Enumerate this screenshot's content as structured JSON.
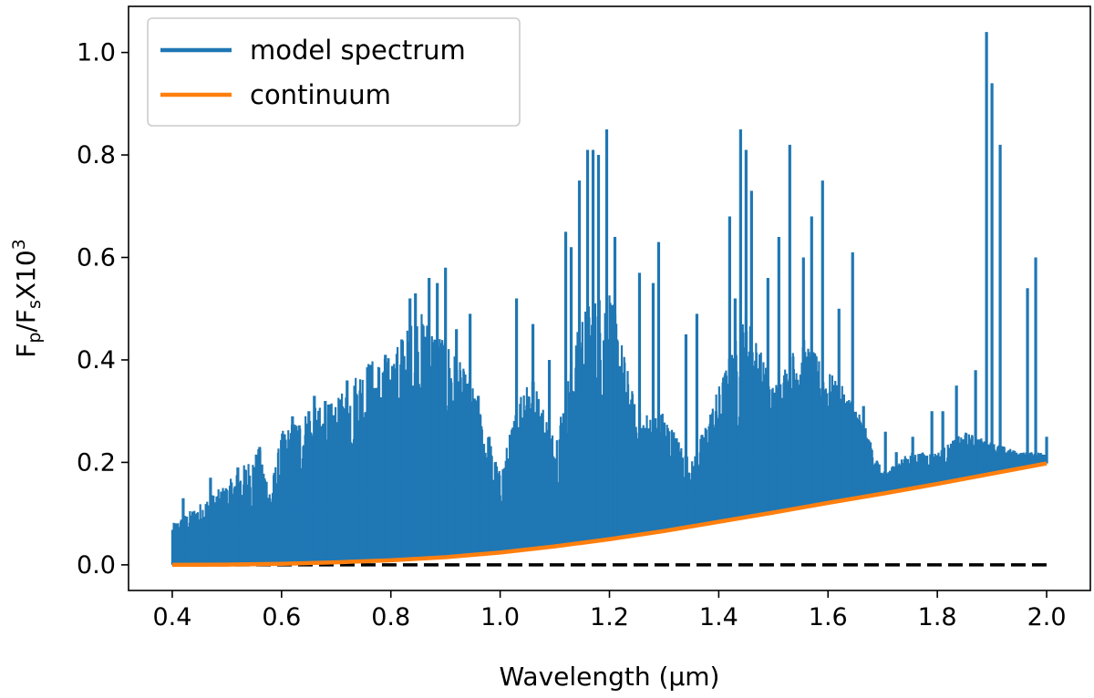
{
  "chart_data": {
    "type": "line",
    "xlabel": "Wavelength (μm)",
    "ylabel": {
      "base": "F",
      "sub1": "p",
      "mid": "/F",
      "sub2": "s",
      "post": "X10",
      "sup": "3"
    },
    "xlim": [
      0.32,
      2.08
    ],
    "ylim": [
      -0.05,
      1.09
    ],
    "xticks": [
      "0.4",
      "0.6",
      "0.8",
      "1.0",
      "1.2",
      "1.4",
      "1.6",
      "1.8",
      "2.0"
    ],
    "yticks": [
      "0.0",
      "0.2",
      "0.4",
      "0.6",
      "0.8",
      "1.0"
    ],
    "grid": false,
    "legend_position": "upper left",
    "colors": {
      "model": "#1f77b4",
      "continuum": "#ff7f0e",
      "zero": "#000000"
    },
    "series": [
      {
        "name": "model spectrum",
        "style": "dense emission-line spectrum (lines drawn from continuum up to the listed peak values)",
        "envelope": [
          [
            0.4,
            0.08
          ],
          [
            0.45,
            0.12
          ],
          [
            0.5,
            0.16
          ],
          [
            0.56,
            0.23
          ],
          [
            0.58,
            0.15
          ],
          [
            0.6,
            0.26
          ],
          [
            0.64,
            0.3
          ],
          [
            0.7,
            0.32
          ],
          [
            0.75,
            0.4
          ],
          [
            0.8,
            0.41
          ],
          [
            0.85,
            0.5
          ],
          [
            0.9,
            0.45
          ],
          [
            0.95,
            0.35
          ],
          [
            1.0,
            0.18
          ],
          [
            1.05,
            0.4
          ],
          [
            1.1,
            0.25
          ],
          [
            1.15,
            0.5
          ],
          [
            1.2,
            0.55
          ],
          [
            1.25,
            0.3
          ],
          [
            1.3,
            0.3
          ],
          [
            1.35,
            0.2
          ],
          [
            1.4,
            0.35
          ],
          [
            1.45,
            0.5
          ],
          [
            1.5,
            0.35
          ],
          [
            1.55,
            0.45
          ],
          [
            1.6,
            0.38
          ],
          [
            1.65,
            0.32
          ],
          [
            1.7,
            0.18
          ],
          [
            1.75,
            0.22
          ],
          [
            1.8,
            0.22
          ],
          [
            1.85,
            0.26
          ],
          [
            1.9,
            0.24
          ],
          [
            1.95,
            0.22
          ],
          [
            2.0,
            0.22
          ]
        ],
        "peaks": [
          [
            0.42,
            0.13
          ],
          [
            0.47,
            0.17
          ],
          [
            0.52,
            0.19
          ],
          [
            0.56,
            0.23
          ],
          [
            0.62,
            0.29
          ],
          [
            0.65,
            0.3
          ],
          [
            0.66,
            0.33
          ],
          [
            0.68,
            0.32
          ],
          [
            0.72,
            0.36
          ],
          [
            0.74,
            0.28
          ],
          [
            0.76,
            0.39
          ],
          [
            0.79,
            0.41
          ],
          [
            0.82,
            0.44
          ],
          [
            0.835,
            0.52
          ],
          [
            0.845,
            0.53
          ],
          [
            0.87,
            0.56
          ],
          [
            0.885,
            0.55
          ],
          [
            0.9,
            0.58
          ],
          [
            0.92,
            0.46
          ],
          [
            0.945,
            0.49
          ],
          [
            0.96,
            0.33
          ],
          [
            0.98,
            0.25
          ],
          [
            1.03,
            0.52
          ],
          [
            1.06,
            0.47
          ],
          [
            1.09,
            0.4
          ],
          [
            1.12,
            0.65
          ],
          [
            1.13,
            0.62
          ],
          [
            1.145,
            0.75
          ],
          [
            1.16,
            0.81
          ],
          [
            1.17,
            0.81
          ],
          [
            1.18,
            0.8
          ],
          [
            1.195,
            0.85
          ],
          [
            1.21,
            0.64
          ],
          [
            1.255,
            0.57
          ],
          [
            1.28,
            0.55
          ],
          [
            1.29,
            0.63
          ],
          [
            1.34,
            0.45
          ],
          [
            1.36,
            0.49
          ],
          [
            1.395,
            0.3
          ],
          [
            1.42,
            0.68
          ],
          [
            1.43,
            0.52
          ],
          [
            1.44,
            0.85
          ],
          [
            1.45,
            0.81
          ],
          [
            1.46,
            0.73
          ],
          [
            1.49,
            0.56
          ],
          [
            1.51,
            0.64
          ],
          [
            1.53,
            0.82
          ],
          [
            1.555,
            0.6
          ],
          [
            1.57,
            0.68
          ],
          [
            1.59,
            0.75
          ],
          [
            1.62,
            0.5
          ],
          [
            1.645,
            0.61
          ],
          [
            1.665,
            0.31
          ],
          [
            1.705,
            0.26
          ],
          [
            1.725,
            0.22
          ],
          [
            1.755,
            0.25
          ],
          [
            1.79,
            0.3
          ],
          [
            1.81,
            0.3
          ],
          [
            1.835,
            0.35
          ],
          [
            1.87,
            0.38
          ],
          [
            1.89,
            1.04
          ],
          [
            1.9,
            0.94
          ],
          [
            1.915,
            0.82
          ],
          [
            1.965,
            0.54
          ],
          [
            1.98,
            0.6
          ],
          [
            2.0,
            0.25
          ]
        ]
      },
      {
        "name": "continuum",
        "x": [
          0.4,
          0.5,
          0.6,
          0.7,
          0.8,
          0.9,
          1.0,
          1.1,
          1.2,
          1.3,
          1.4,
          1.5,
          1.6,
          1.7,
          1.8,
          1.9,
          2.0
        ],
        "y": [
          0.0,
          0.0005,
          0.002,
          0.005,
          0.009,
          0.015,
          0.024,
          0.036,
          0.05,
          0.066,
          0.084,
          0.102,
          0.121,
          0.139,
          0.158,
          0.178,
          0.198
        ]
      }
    ],
    "reference_line": {
      "y": 0.0,
      "style": "dashed",
      "x": [
        0.4,
        2.0
      ]
    }
  }
}
